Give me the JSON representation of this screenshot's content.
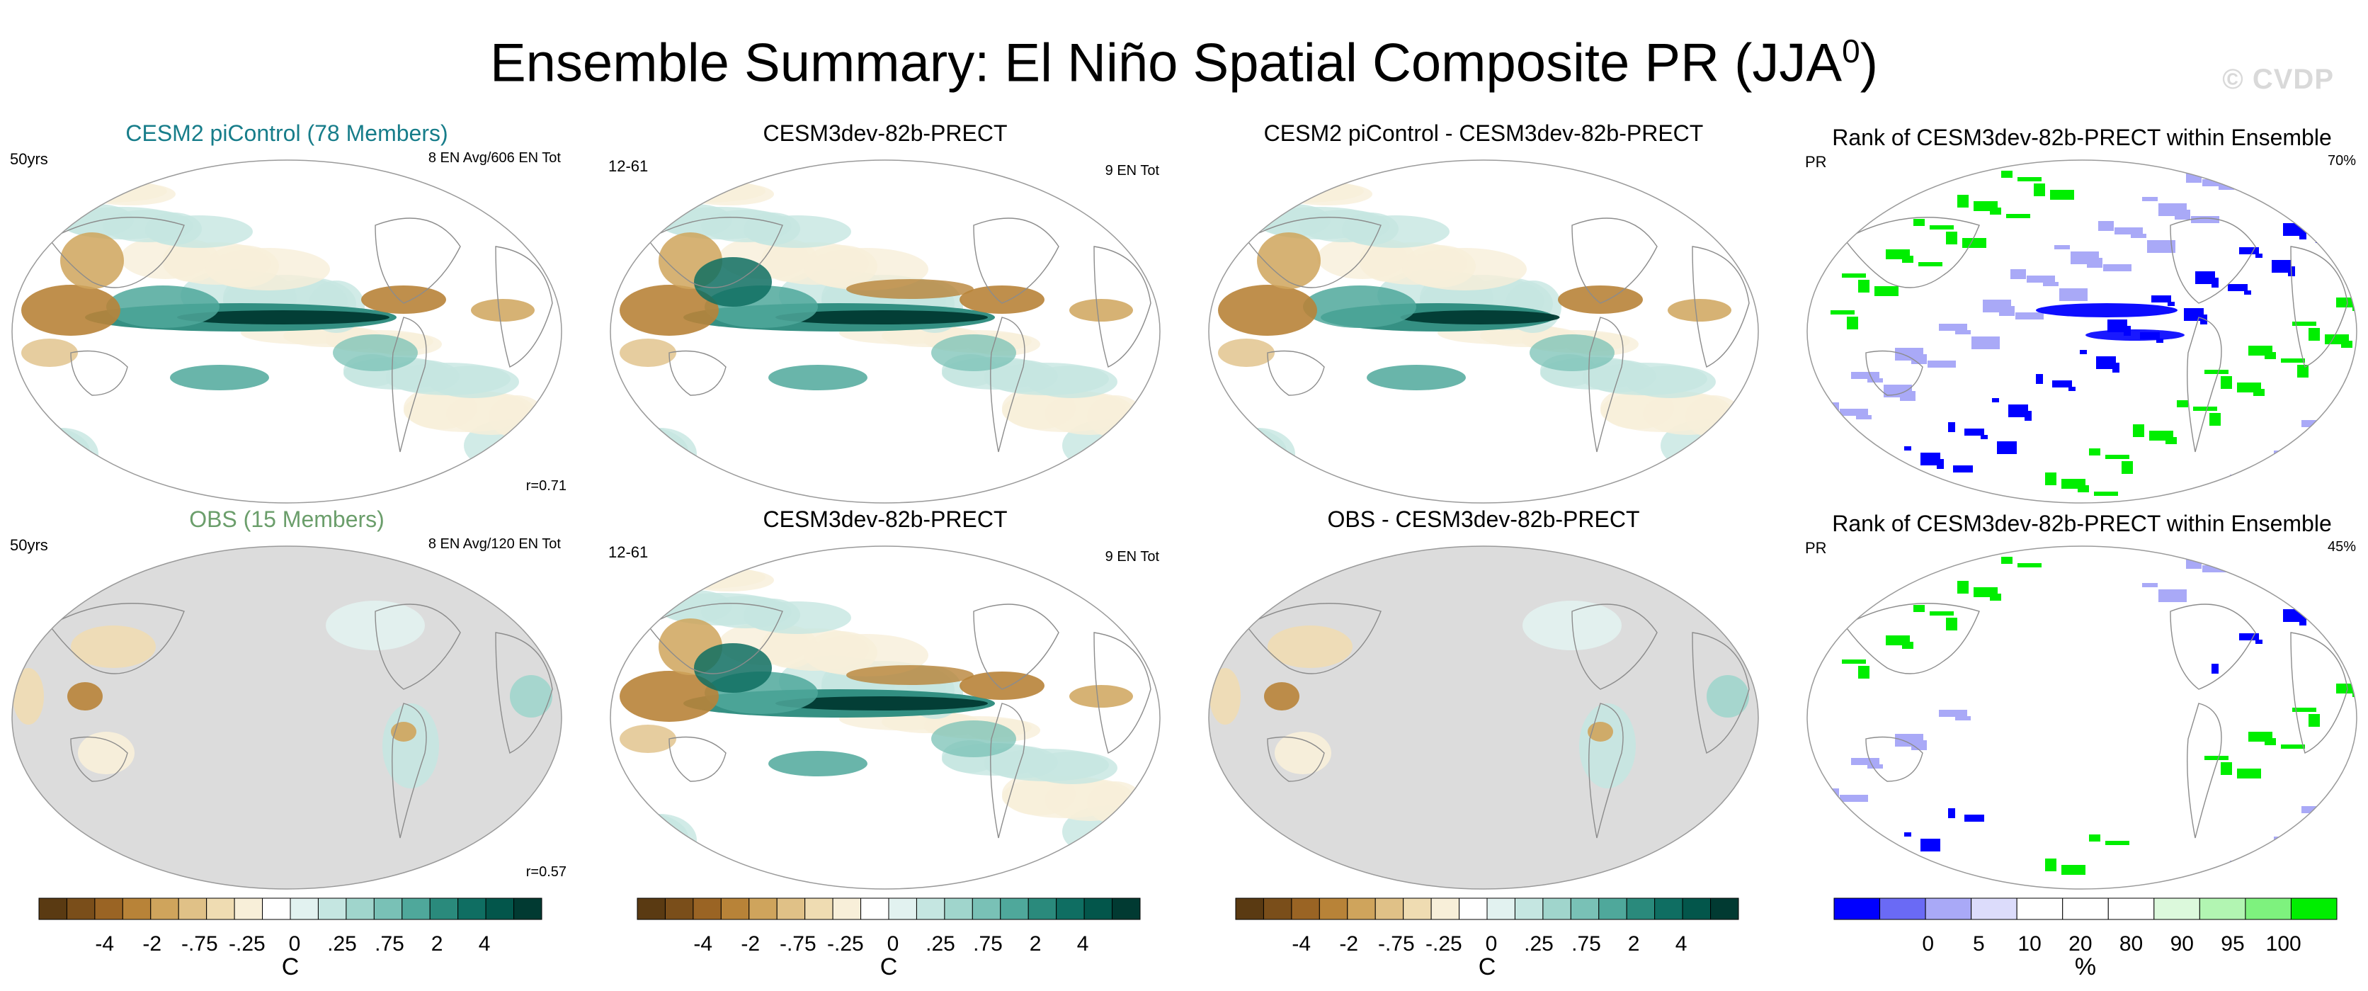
{
  "title": "Ensemble Summary: El Niño Spatial Composite PR (JJA",
  "title_sup": "0",
  "title_close": ")",
  "watermark": "© CVDP",
  "panels": [
    {
      "title": "CESM2 piControl (78 Members)",
      "left": "50yrs",
      "right": "8 EN Avg/606 EN Tot",
      "corr": "r=0.71",
      "type": "cesm"
    },
    {
      "title": "CESM3dev-82b-PRECT",
      "left": "12-61",
      "right": "9 EN Tot",
      "corr": "",
      "type": "model"
    },
    {
      "title": "CESM2 piControl - CESM3dev-82b-PRECT",
      "left": "",
      "right": "",
      "corr": "",
      "type": "diff"
    },
    {
      "title": "Rank of CESM3dev-82b-PRECT within Ensemble",
      "left": "PR",
      "right": "70%",
      "corr": "",
      "type": "rank"
    },
    {
      "title": "OBS (15 Members)",
      "left": "50yrs",
      "right": "8 EN Avg/120 EN Tot",
      "corr": "r=0.57",
      "type": "obs"
    },
    {
      "title": "CESM3dev-82b-PRECT",
      "left": "12-61",
      "right": "9 EN Tot",
      "corr": "",
      "type": "model"
    },
    {
      "title": "OBS - CESM3dev-82b-PRECT",
      "left": "",
      "right": "",
      "corr": "",
      "type": "obsdiff"
    },
    {
      "title": "Rank of CESM3dev-82b-PRECT within Ensemble",
      "left": "PR",
      "right": "45%",
      "corr": "",
      "type": "rankobs"
    }
  ],
  "chart_data": [
    {
      "type": "heatmap",
      "description_title": "Composite colorbar",
      "colorbar_ticks": [
        "-4",
        "-2",
        "-.75",
        "-.25",
        "0",
        ".25",
        ".75",
        "2",
        "4"
      ],
      "colorbar_unit": "C",
      "colors": [
        "#5a3a12",
        "#7a4e1a",
        "#9a6424",
        "#b88338",
        "#cfa45c",
        "#e0c187",
        "#efdcb2",
        "#f8efd9",
        "#ffffff",
        "#e2f2f0",
        "#c5e6e1",
        "#a0d5cc",
        "#79c1b6",
        "#4fa89b",
        "#2a8a7c",
        "#0f6e62",
        "#03564b",
        "#013a32"
      ]
    },
    {
      "type": "heatmap",
      "description_title": "Rank colorbar",
      "colorbar_ticks": [
        "0",
        "5",
        "10",
        "20",
        "80",
        "90",
        "95",
        "100"
      ],
      "colorbar_unit": "%",
      "colors": [
        "#0000ff",
        "#6a6af5",
        "#a9a9f7",
        "#dcdcfb",
        "#ffffff",
        "#ffffff",
        "#ffffff",
        "#dcf9dc",
        "#b2f5b2",
        "#7ef27e",
        "#00ee00"
      ]
    }
  ]
}
